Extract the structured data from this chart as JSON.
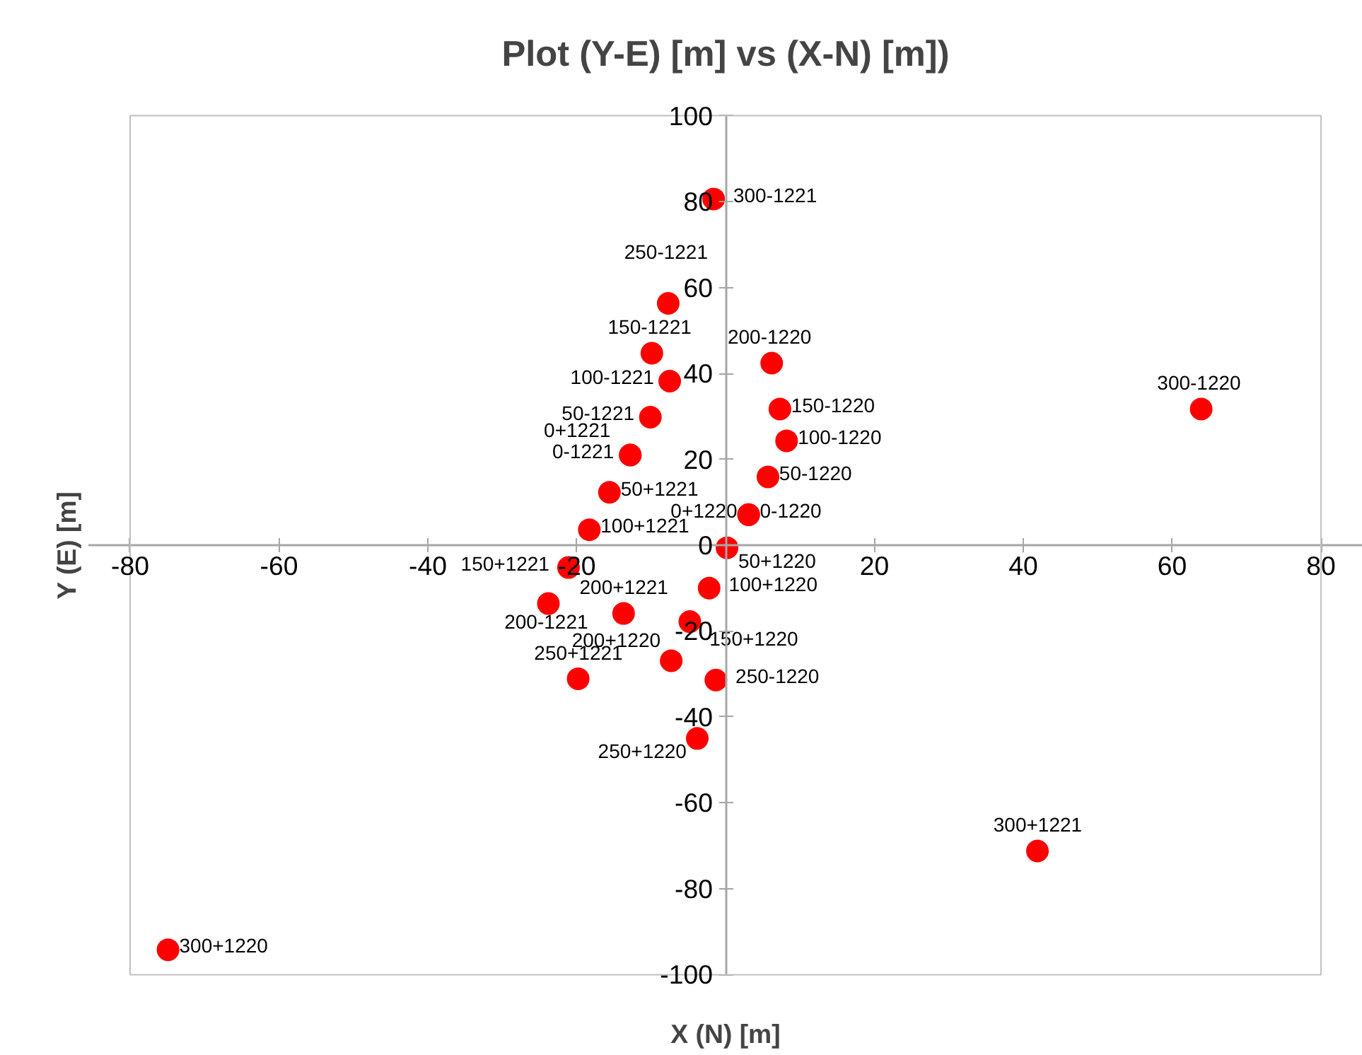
{
  "chart_data": {
    "type": "scatter",
    "title": "Plot (Y-E) [m] vs (X-N) [m])",
    "xlabel": "X (N) [m]",
    "ylabel": "Y (E) [m]",
    "xlim": [
      -80,
      80
    ],
    "ylim": [
      -100,
      100
    ],
    "xticks": [
      -80,
      -60,
      -40,
      -20,
      {
        "value": 0,
        "label": null
      },
      20,
      40,
      60,
      80
    ],
    "yticks": [
      -100,
      -80,
      -60,
      -40,
      -20,
      {
        "value": 0,
        "label": "0"
      },
      20,
      40,
      60,
      80,
      100
    ],
    "grid": false,
    "marker": "circle",
    "series": [
      {
        "color": "#ff0000",
        "x": [
          -12.8,
          -10.1,
          -7.5,
          -9.9,
          -23.8,
          -7.7,
          -1.6,
          -12.8,
          -15.6,
          -18.3,
          -21.1,
          -13.7,
          -19.8,
          41.9,
          3.1,
          5.7,
          8.2,
          7.3,
          6.2,
          -1.3,
          63.9,
          3.1,
          0.2,
          -2.2,
          -4.8,
          -7.3,
          -3.8,
          -74.9
        ],
        "values": [
          21.0,
          29.8,
          38.2,
          44.7,
          -13.6,
          56.3,
          80.6,
          21.0,
          12.3,
          3.6,
          -5.2,
          -15.9,
          -31.1,
          -71.2,
          7.1,
          15.9,
          24.3,
          31.7,
          42.4,
          -31.4,
          31.7,
          7.1,
          -0.6,
          -10.0,
          -17.8,
          -26.9,
          -45.0,
          -94.2
        ],
        "value_labels": [
          "0-1221",
          "50-1221",
          "100-1221",
          "150-1221",
          "200-1221",
          "250-1221",
          "300-1221",
          "0+1221",
          "50+1221",
          "100+1221",
          "150+1221",
          "200+1221",
          "250+1221",
          "300+1221",
          "0-1220",
          "50-1220",
          "100-1220",
          "150-1220",
          "200-1220",
          "250-1220",
          "300-1220",
          "0+1220",
          "50+1220",
          "100+1220",
          "150+1220",
          "200+1220",
          "250+1220",
          "300+1220"
        ]
      }
    ]
  }
}
